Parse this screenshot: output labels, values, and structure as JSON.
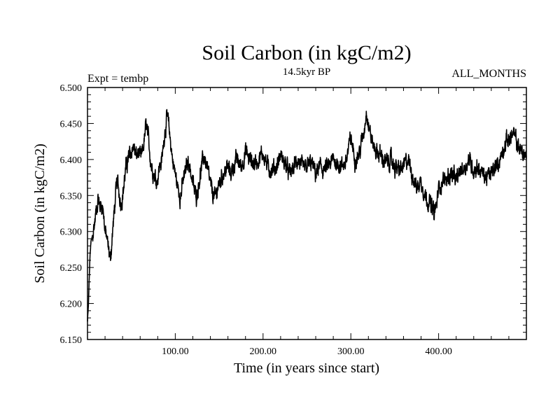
{
  "chart_data": {
    "type": "line",
    "title": "Soil Carbon (in kgC/m2)",
    "subtitle": "14.5kyr BP",
    "left_label": "Expt = tembp",
    "right_label": "ALL_MONTHS",
    "xlabel": "Time (in years since start)",
    "ylabel": "Soil Carbon (in kgC/m2)",
    "xlim": [
      0,
      500
    ],
    "ylim": [
      6.15,
      6.5
    ],
    "x_ticks": [
      100,
      200,
      300,
      400
    ],
    "x_tick_labels": [
      "100.00",
      "200.00",
      "300.00",
      "400.00"
    ],
    "y_ticks": [
      6.15,
      6.2,
      6.25,
      6.3,
      6.35,
      6.4,
      6.45,
      6.5
    ],
    "y_tick_labels": [
      "6.150",
      "6.200",
      "6.250",
      "6.300",
      "6.350",
      "6.400",
      "6.450",
      "6.500"
    ],
    "grid": false,
    "series": [
      {
        "name": "Soil Carbon",
        "x": [
          0,
          1,
          2,
          3,
          4,
          6,
          8,
          10,
          12,
          14,
          16,
          18,
          20,
          22,
          24,
          26,
          28,
          30,
          32,
          34,
          36,
          38,
          40,
          42,
          44,
          46,
          48,
          50,
          52,
          55,
          58,
          61,
          64,
          67,
          70,
          73,
          76,
          79,
          82,
          85,
          88,
          91,
          94,
          97,
          100,
          103,
          106,
          109,
          112,
          115,
          118,
          121,
          124,
          127,
          130,
          133,
          136,
          139,
          142,
          145,
          148,
          151,
          154,
          157,
          160,
          163,
          166,
          170,
          175,
          180,
          185,
          190,
          195,
          200,
          205,
          210,
          215,
          220,
          225,
          230,
          235,
          240,
          245,
          250,
          255,
          260,
          265,
          270,
          275,
          280,
          285,
          290,
          295,
          300,
          305,
          310,
          315,
          318,
          320,
          325,
          330,
          335,
          340,
          345,
          350,
          355,
          360,
          365,
          370,
          375,
          380,
          385,
          390,
          393,
          395,
          398,
          400,
          405,
          410,
          415,
          420,
          425,
          430,
          435,
          440,
          445,
          450,
          455,
          460,
          465,
          470,
          475,
          480,
          485,
          490,
          495,
          500
        ],
        "values": [
          6.175,
          6.195,
          6.235,
          6.27,
          6.285,
          6.295,
          6.31,
          6.33,
          6.345,
          6.335,
          6.34,
          6.33,
          6.3,
          6.29,
          6.275,
          6.26,
          6.29,
          6.32,
          6.35,
          6.37,
          6.355,
          6.34,
          6.35,
          6.37,
          6.39,
          6.4,
          6.405,
          6.41,
          6.42,
          6.405,
          6.41,
          6.4,
          6.42,
          6.45,
          6.42,
          6.39,
          6.38,
          6.37,
          6.39,
          6.4,
          6.44,
          6.46,
          6.43,
          6.4,
          6.38,
          6.36,
          6.35,
          6.37,
          6.385,
          6.4,
          6.38,
          6.36,
          6.35,
          6.37,
          6.39,
          6.405,
          6.39,
          6.37,
          6.355,
          6.345,
          6.36,
          6.37,
          6.38,
          6.385,
          6.39,
          6.38,
          6.39,
          6.4,
          6.39,
          6.41,
          6.4,
          6.395,
          6.4,
          6.41,
          6.39,
          6.385,
          6.39,
          6.405,
          6.395,
          6.38,
          6.39,
          6.4,
          6.385,
          6.39,
          6.395,
          6.38,
          6.39,
          6.385,
          6.39,
          6.4,
          6.395,
          6.39,
          6.4,
          6.43,
          6.4,
          6.41,
          6.44,
          6.47,
          6.45,
          6.42,
          6.41,
          6.405,
          6.395,
          6.4,
          6.39,
          6.385,
          6.39,
          6.4,
          6.38,
          6.36,
          6.37,
          6.35,
          6.34,
          6.33,
          6.325,
          6.34,
          6.36,
          6.37,
          6.375,
          6.38,
          6.37,
          6.385,
          6.39,
          6.4,
          6.385,
          6.39,
          6.38,
          6.375,
          6.38,
          6.39,
          6.4,
          6.42,
          6.43,
          6.435,
          6.42,
          6.41,
          6.405
        ]
      }
    ]
  }
}
